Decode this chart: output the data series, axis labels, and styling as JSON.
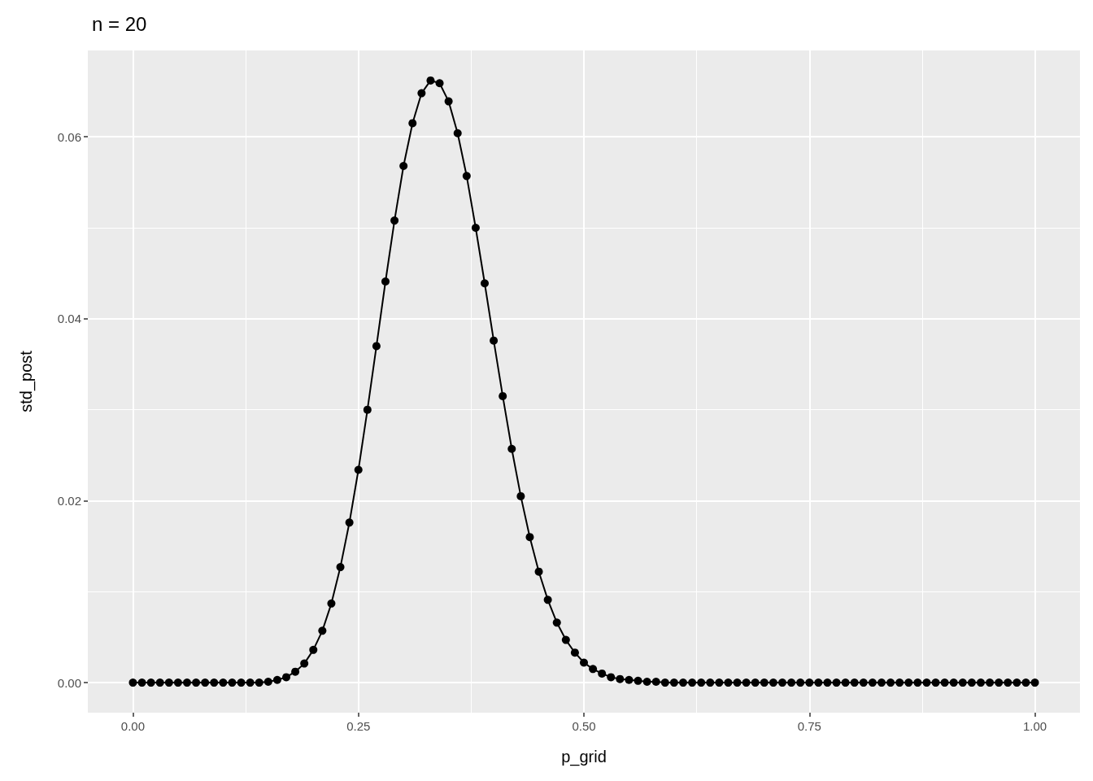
{
  "chart_data": {
    "type": "line",
    "title": "n = 20",
    "xlabel": "p_grid",
    "ylabel": "std_post",
    "x": [
      0,
      0.01,
      0.02,
      0.03,
      0.04,
      0.05,
      0.06,
      0.07,
      0.08,
      0.09,
      0.1,
      0.11,
      0.12,
      0.13,
      0.14,
      0.15,
      0.16,
      0.17,
      0.18,
      0.19,
      0.2,
      0.21,
      0.22,
      0.23,
      0.24,
      0.25,
      0.26,
      0.27,
      0.28,
      0.29,
      0.3,
      0.31,
      0.32,
      0.33,
      0.34,
      0.35,
      0.36,
      0.37,
      0.38,
      0.39,
      0.4,
      0.41,
      0.42,
      0.43,
      0.44,
      0.45,
      0.46,
      0.47,
      0.48,
      0.49,
      0.5,
      0.51,
      0.52,
      0.53,
      0.54,
      0.55,
      0.56,
      0.57,
      0.58,
      0.59,
      0.6,
      0.61,
      0.62,
      0.63,
      0.64,
      0.65,
      0.66,
      0.67,
      0.68,
      0.69,
      0.7,
      0.71,
      0.72,
      0.73,
      0.74,
      0.75,
      0.76,
      0.77,
      0.78,
      0.79,
      0.8,
      0.81,
      0.82,
      0.83,
      0.84,
      0.85,
      0.86,
      0.87,
      0.88,
      0.89,
      0.9,
      0.91,
      0.92,
      0.93,
      0.94,
      0.95,
      0.96,
      0.97,
      0.98,
      0.99,
      1
    ],
    "values": [
      0,
      0,
      0,
      0,
      0,
      0,
      0,
      0,
      0,
      0,
      0,
      0,
      0,
      0,
      0,
      0.0001,
      0.0003,
      0.0006,
      0.0012,
      0.0021,
      0.0036,
      0.0057,
      0.0087,
      0.0127,
      0.0176,
      0.0234,
      0.03,
      0.037,
      0.0441,
      0.0508,
      0.0568,
      0.0615,
      0.0648,
      0.0662,
      0.0659,
      0.0639,
      0.0604,
      0.0557,
      0.05,
      0.0439,
      0.0376,
      0.0315,
      0.0257,
      0.0205,
      0.016,
      0.0122,
      0.0091,
      0.0066,
      0.0047,
      0.0033,
      0.0022,
      0.0015,
      0.001,
      0.0006,
      0.0004,
      0.0003,
      0.0002,
      0.0001,
      0.0001,
      0,
      0,
      0,
      0,
      0,
      0,
      0,
      0,
      0,
      0,
      0,
      0,
      0,
      0,
      0,
      0,
      0,
      0,
      0,
      0,
      0,
      0,
      0,
      0,
      0,
      0,
      0,
      0,
      0,
      0,
      0,
      0,
      0,
      0,
      0,
      0,
      0,
      0,
      0,
      0,
      0,
      0
    ],
    "color": "#000000",
    "marker": "circle",
    "line_style": "solid",
    "grid": true,
    "xlim": [
      -0.05,
      1.05
    ],
    "xticks": [
      {
        "value": 0,
        "label": "0.00"
      },
      {
        "value": 0.25,
        "label": "0.25"
      },
      {
        "value": 0.5,
        "label": "0.50"
      },
      {
        "value": 0.75,
        "label": "0.75"
      },
      {
        "value": 1,
        "label": "1.00"
      }
    ],
    "ylim": [
      -0.0033,
      0.0695
    ],
    "yticks": [
      {
        "value": 0,
        "label": "0.00"
      },
      {
        "value": 0.02,
        "label": "0.02"
      },
      {
        "value": 0.04,
        "label": "0.04"
      },
      {
        "value": 0.06,
        "label": "0.06"
      }
    ]
  }
}
